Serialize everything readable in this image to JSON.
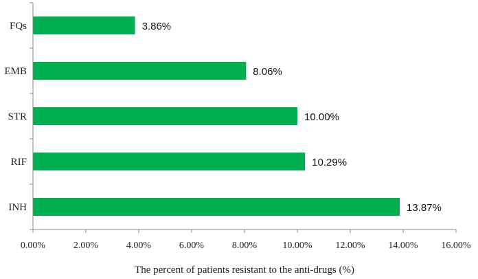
{
  "chart_data": {
    "type": "bar",
    "orientation": "horizontal",
    "categories": [
      "FQs",
      "EMB",
      "STR",
      "RIF",
      "INH"
    ],
    "values": [
      3.86,
      8.06,
      10.0,
      10.29,
      13.87
    ],
    "value_labels": [
      "3.86%",
      "8.06%",
      "10.00%",
      "10.29%",
      "13.87%"
    ],
    "xlabel": "The percent of patients resistant to the anti-drugs (%)",
    "xlim": [
      0,
      16
    ],
    "xticks": [
      0,
      2,
      4,
      6,
      8,
      10,
      12,
      14,
      16
    ],
    "xtick_labels": [
      "0.00%",
      "2.00%",
      "4.00%",
      "6.00%",
      "8.00%",
      "10.00%",
      "12.00%",
      "14.00%",
      "16.00%"
    ],
    "bar_color": "#00b050",
    "grid": false,
    "legend": "none"
  }
}
